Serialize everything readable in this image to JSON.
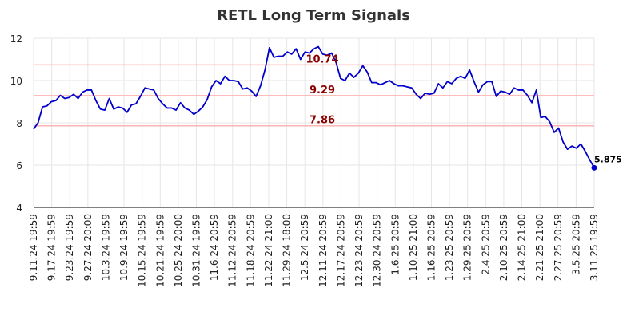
{
  "chart_data": {
    "type": "line",
    "title": "RETL Long Term Signals",
    "xlabel": "",
    "ylabel": "",
    "ylim": [
      4,
      12
    ],
    "yticks": [
      "4",
      "6",
      "8",
      "10",
      "12"
    ],
    "grid": true,
    "line_color": "#0000cc",
    "signal_line_color": "#ffb3b3",
    "signal_label_color": "#8b0000",
    "x_tick_labels": [
      "9.11.24 19:59",
      "9.17.24 19:59",
      "9.23.24 19:59",
      "9.27.24 20:00",
      "10.3.24 19:59",
      "10.9.24 19:59",
      "10.15.24 19:59",
      "10.21.24 19:59",
      "10.25.24 20:00",
      "10.31.24 19:59",
      "11.6.24 20:59",
      "11.12.24 20:59",
      "11.18.24 20:59",
      "11.22.24 21:00",
      "11.29.24 18:00",
      "12.5.24 20:59",
      "12.11.24 20:59",
      "12.17.24 20:59",
      "12.23.24 20:59",
      "12.30.24 20:59",
      "1.6.25 20:59",
      "1.10.25 21:00",
      "1.16.25 20:59",
      "1.23.25 20:59",
      "1.29.25 20:59",
      "2.4.25 20:59",
      "2.10.25 20:59",
      "2.14.25 21:00",
      "2.21.25 21:00",
      "2.27.25 20:59",
      "3.5.25 20:59",
      "3.11.25 19:59"
    ],
    "signals": [
      {
        "label": "10.74",
        "value": 10.74
      },
      {
        "label": "9.29",
        "value": 9.29
      },
      {
        "label": "7.86",
        "value": 7.86
      }
    ],
    "last_label": "5.875",
    "series": [
      {
        "values": [
          7.7,
          8.0,
          8.75,
          8.8,
          9.0,
          9.05,
          9.3,
          9.15,
          9.2,
          9.35,
          9.15,
          9.45,
          9.55,
          9.55,
          9.05,
          8.65,
          8.6,
          9.15,
          8.65,
          8.75,
          8.7,
          8.5,
          8.85,
          8.9,
          9.25,
          9.65,
          9.6,
          9.55,
          9.15,
          8.9,
          8.7,
          8.7,
          8.6,
          8.95,
          8.7,
          8.6,
          8.4,
          8.55,
          8.75,
          9.1,
          9.7,
          10.0,
          9.85,
          10.2,
          10.0,
          10.0,
          9.95,
          9.6,
          9.65,
          9.5,
          9.25,
          9.75,
          10.5,
          11.55,
          11.1,
          11.15,
          11.15,
          11.35,
          11.25,
          11.5,
          11.0,
          11.35,
          11.3,
          11.5,
          11.6,
          11.25,
          11.2,
          11.3,
          10.85,
          10.1,
          10.0,
          10.35,
          10.15,
          10.35,
          10.7,
          10.4,
          9.9,
          9.9,
          9.8,
          9.9,
          10.0,
          9.85,
          9.75,
          9.75,
          9.7,
          9.65,
          9.35,
          9.15,
          9.4,
          9.35,
          9.4,
          9.85,
          9.65,
          9.95,
          9.85,
          10.1,
          10.2,
          10.1,
          10.5,
          9.95,
          9.45,
          9.8,
          9.95,
          9.95,
          9.25,
          9.5,
          9.45,
          9.35,
          9.65,
          9.55,
          9.55,
          9.3,
          8.95,
          9.55,
          8.25,
          8.3,
          8.05,
          7.55,
          7.75,
          7.1,
          6.75,
          6.9,
          6.8,
          7.0,
          6.65,
          6.25,
          5.875
        ]
      }
    ]
  }
}
